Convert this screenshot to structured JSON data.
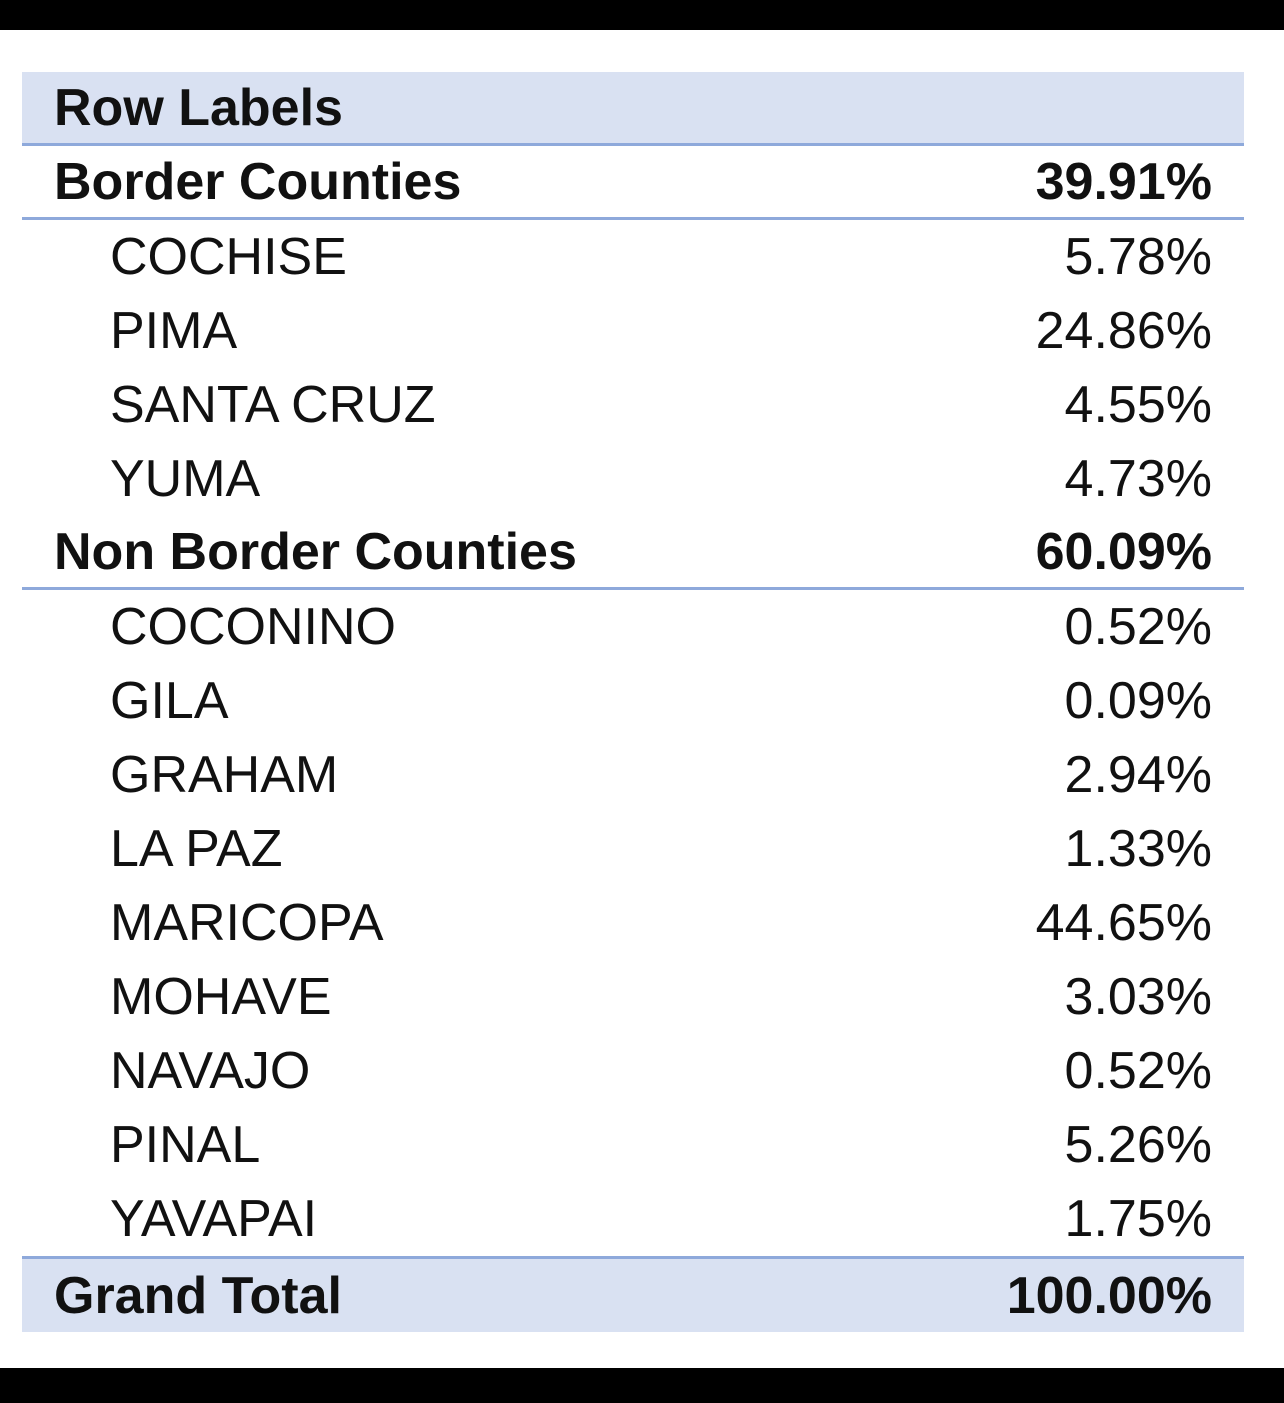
{
  "header": {
    "row_labels": "Row Labels"
  },
  "groups": [
    {
      "label": "Border Counties",
      "value": "39.91%",
      "items": [
        {
          "label": "COCHISE",
          "value": "5.78%"
        },
        {
          "label": "PIMA",
          "value": "24.86%"
        },
        {
          "label": "SANTA CRUZ",
          "value": "4.55%"
        },
        {
          "label": "YUMA",
          "value": "4.73%"
        }
      ]
    },
    {
      "label": "Non Border Counties",
      "value": "60.09%",
      "items": [
        {
          "label": "COCONINO",
          "value": "0.52%"
        },
        {
          "label": "GILA",
          "value": "0.09%"
        },
        {
          "label": "GRAHAM",
          "value": "2.94%"
        },
        {
          "label": "LA PAZ",
          "value": "1.33%"
        },
        {
          "label": "MARICOPA",
          "value": "44.65%"
        },
        {
          "label": "MOHAVE",
          "value": "3.03%"
        },
        {
          "label": "NAVAJO",
          "value": "0.52%"
        },
        {
          "label": "PINAL",
          "value": "5.26%"
        },
        {
          "label": "YAVAPAI",
          "value": "1.75%"
        }
      ]
    }
  ],
  "grand_total": {
    "label": "Grand Total",
    "value": "100.00%"
  },
  "colors": {
    "header_fill": "#d9e1f2",
    "border_line": "#8ea9db"
  }
}
